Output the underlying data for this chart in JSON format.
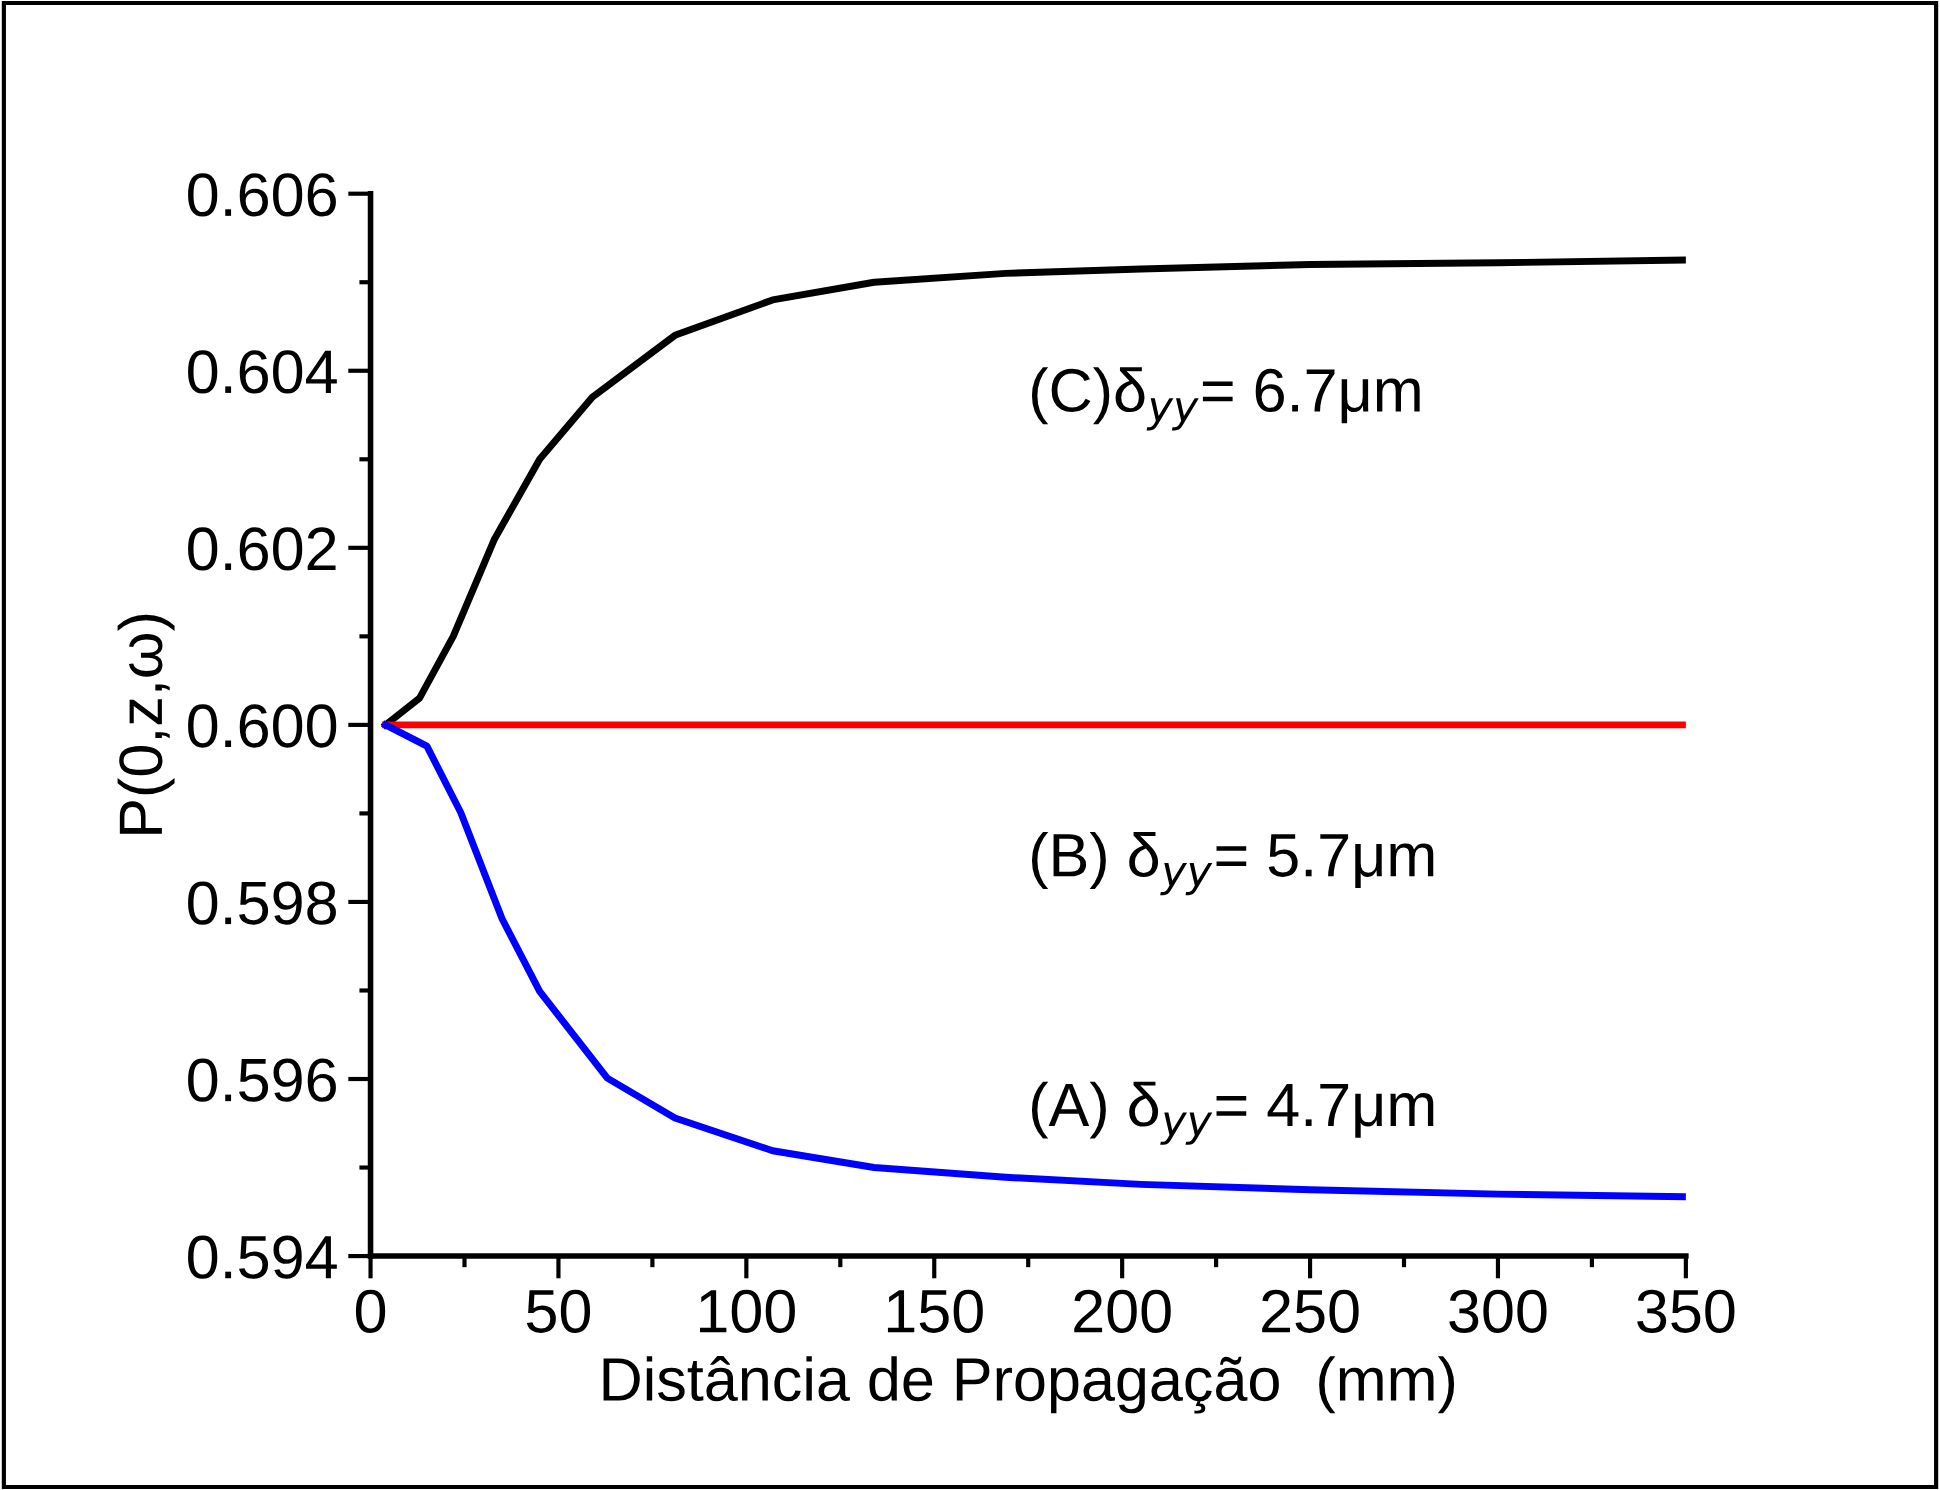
{
  "chart_data": {
    "type": "line",
    "xlabel": "Distância de Propagação  (mm)",
    "ylabel": "P(0,z,ω)",
    "xlim": [
      0,
      350
    ],
    "xticks": [
      0,
      50,
      100,
      150,
      200,
      250,
      300,
      350
    ],
    "ylim": [
      0.594,
      0.606
    ],
    "yticks": [
      {
        "value": 0.594,
        "label": "0.594"
      },
      {
        "value": 0.596,
        "label": "0.596"
      },
      {
        "value": 0.598,
        "label": "0.598"
      },
      {
        "value": 0.6,
        "label": "0.600"
      },
      {
        "value": 0.602,
        "label": "0.602"
      },
      {
        "value": 0.604,
        "label": "0.604"
      },
      {
        "value": 0.606,
        "label": "0.606"
      }
    ],
    "grid": false,
    "legend": false,
    "marker": "none",
    "line_style": "solid",
    "series": [
      {
        "name": "(C)δ$_{yy}$= 6.7μm",
        "color": "#000000",
        "x": [
          4,
          13,
          22,
          33,
          45,
          59,
          81,
          107,
          134,
          169,
          205,
          250,
          300,
          350
        ],
        "values": [
          0.6,
          0.6003,
          0.601,
          0.6021,
          0.603,
          0.6037,
          0.6044,
          0.6048,
          0.605,
          0.6051,
          0.60515,
          0.6052,
          0.60522,
          0.60525
        ]
      },
      {
        "name": "(B) δ$_{yy}$= 5.7μm",
        "color": "#ff0000",
        "x": [
          4,
          350
        ],
        "values": [
          0.6,
          0.6
        ]
      },
      {
        "name": "(A) δ$_{yy}$= 4.7μm",
        "color": "#0000ff",
        "x": [
          4,
          15,
          24,
          35,
          45,
          63,
          81,
          107,
          134,
          169,
          205,
          250,
          300,
          350
        ],
        "values": [
          0.6,
          0.59976,
          0.59901,
          0.59781,
          0.59699,
          0.59601,
          0.59556,
          0.59519,
          0.595,
          0.59489,
          0.59481,
          0.59475,
          0.5947,
          0.59467
        ]
      }
    ]
  }
}
